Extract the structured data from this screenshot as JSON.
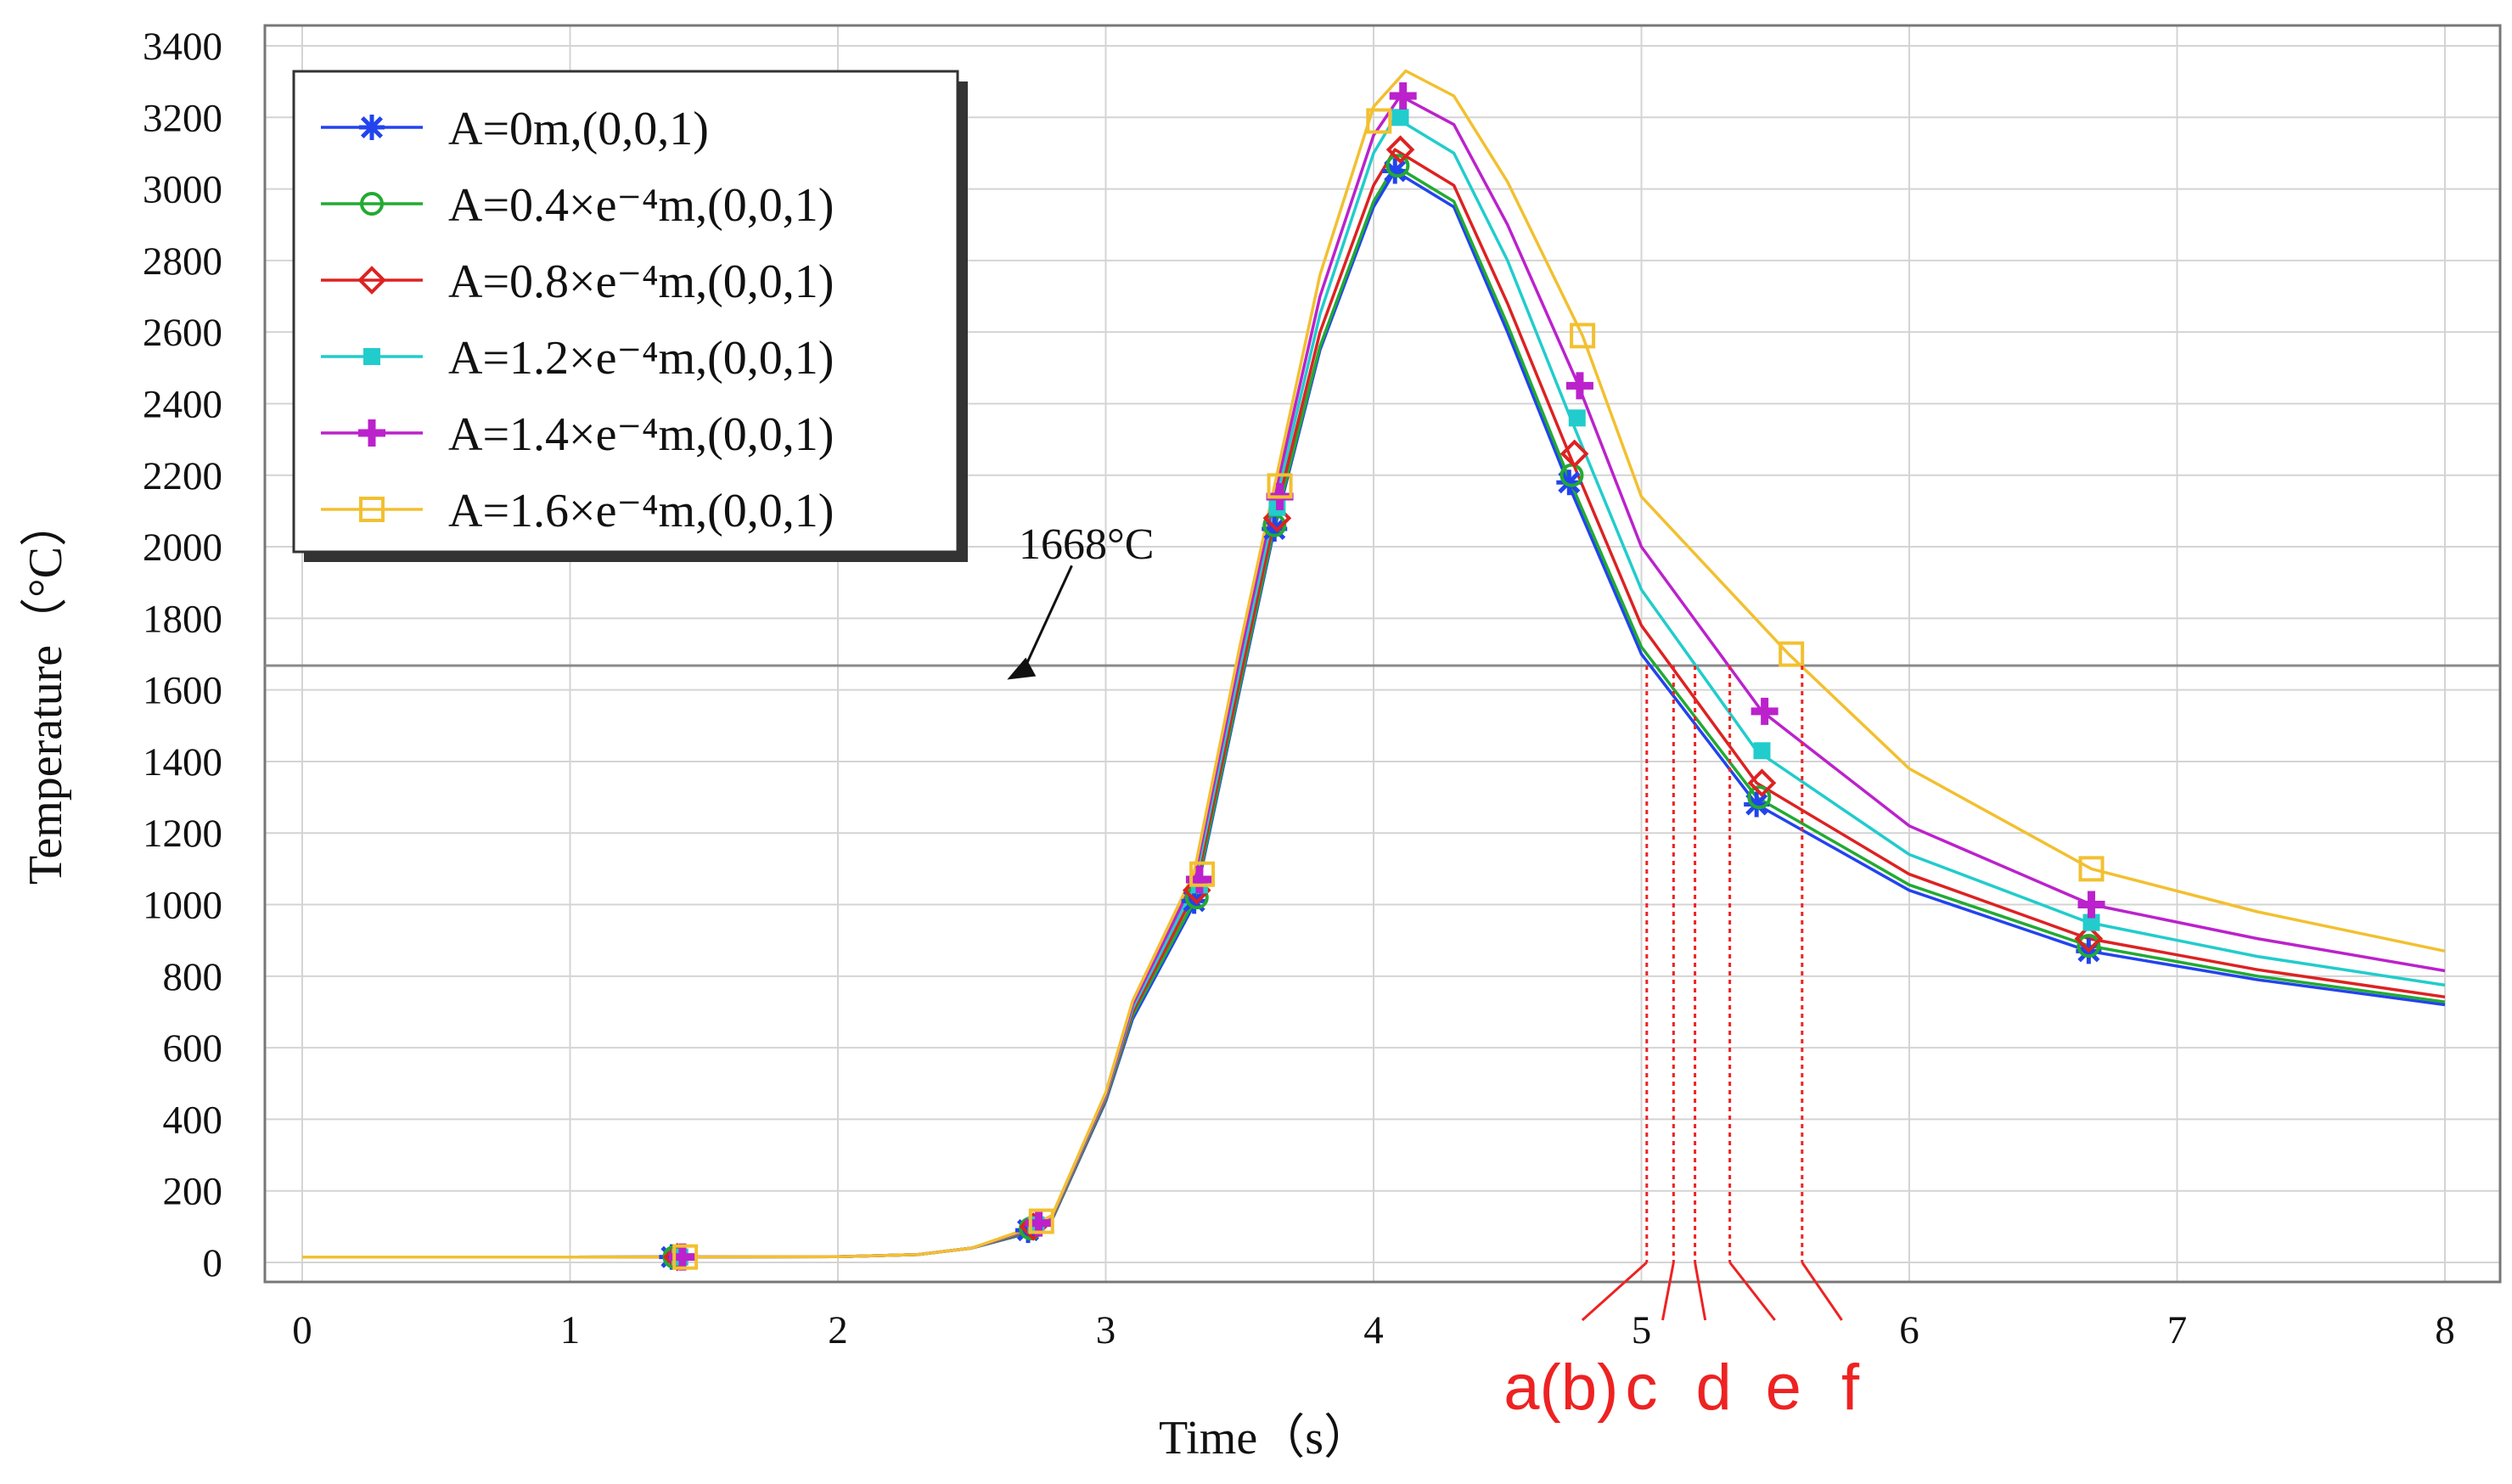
{
  "chart_data": {
    "type": "line",
    "xlabel": "Time（s）",
    "ylabel": "Temperature（°C）",
    "xlim": [
      0,
      8
    ],
    "ylim": [
      0,
      3400
    ],
    "xticks": [
      0,
      1,
      2,
      3,
      4,
      5,
      6,
      7,
      8
    ],
    "yticks": [
      0,
      200,
      400,
      600,
      800,
      1000,
      1200,
      1400,
      1600,
      1800,
      2000,
      2200,
      2400,
      2600,
      2800,
      3000,
      3200,
      3400
    ],
    "grid": true,
    "legend_position": "top-left",
    "series": [
      {
        "name": "A=0m,(0,0,1)",
        "color": "#2244ee",
        "marker": "star",
        "x": [
          0,
          1,
          2,
          2.3,
          2.5,
          2.7,
          2.8,
          3.0,
          3.1,
          3.33,
          3.5,
          3.63,
          3.8,
          4.0,
          4.08,
          4.3,
          4.5,
          4.73,
          5.0,
          5.43,
          6.0,
          6.67,
          7.3,
          8.0
        ],
        "y": [
          15,
          15,
          16,
          22,
          40,
          80,
          120,
          450,
          680,
          1000,
          1600,
          2050,
          2550,
          2950,
          3050,
          2950,
          2600,
          2170,
          1700,
          1280,
          1040,
          870,
          790,
          720
        ],
        "marker_x": [
          1.38,
          2.71,
          3.33,
          3.63,
          4.08,
          4.73,
          5.43,
          6.67
        ],
        "marker_y": [
          15,
          90,
          1010,
          2050,
          3050,
          2180,
          1280,
          870
        ]
      },
      {
        "name": "A=0.4×e⁻⁴m,(0,0,1)",
        "color": "#22aa33",
        "marker": "circle",
        "x": [
          0,
          1,
          2,
          2.3,
          2.5,
          2.7,
          2.8,
          3.0,
          3.1,
          3.33,
          3.5,
          3.63,
          3.8,
          4.0,
          4.08,
          4.3,
          4.5,
          4.73,
          5.0,
          5.43,
          6.0,
          6.67,
          7.3,
          8.0
        ],
        "y": [
          15,
          15,
          16,
          22,
          40,
          82,
          122,
          455,
          690,
          1010,
          1610,
          2060,
          2560,
          2965,
          3065,
          2965,
          2620,
          2190,
          1720,
          1300,
          1055,
          885,
          800,
          728
        ],
        "marker_x": [
          1.39,
          2.72,
          3.34,
          3.63,
          4.09,
          4.74,
          5.44,
          6.67
        ],
        "marker_y": [
          15,
          95,
          1020,
          2060,
          3065,
          2200,
          1300,
          885
        ]
      },
      {
        "name": "A=0.8×e⁻⁴m,(0,0,1)",
        "color": "#dd2222",
        "marker": "diamond",
        "x": [
          0,
          1,
          2,
          2.3,
          2.5,
          2.7,
          2.8,
          3.0,
          3.1,
          3.33,
          3.5,
          3.63,
          3.8,
          4.0,
          4.08,
          4.3,
          4.5,
          4.73,
          5.0,
          5.43,
          6.0,
          6.67,
          7.3,
          8.0
        ],
        "y": [
          15,
          15,
          16,
          22,
          40,
          85,
          125,
          460,
          700,
          1030,
          1630,
          2080,
          2600,
          3010,
          3110,
          3010,
          2680,
          2260,
          1780,
          1340,
          1085,
          905,
          818,
          742
        ],
        "marker_x": [
          1.4,
          2.73,
          3.34,
          3.64,
          4.1,
          4.75,
          5.45,
          6.67
        ],
        "marker_y": [
          15,
          100,
          1040,
          2080,
          3110,
          2260,
          1340,
          905
        ]
      },
      {
        "name": "A=1.2×e⁻⁴m,(0,0,1)",
        "color": "#22cccc",
        "marker": "square-filled",
        "x": [
          0,
          1,
          2,
          2.3,
          2.5,
          2.7,
          2.8,
          3.0,
          3.1,
          3.33,
          3.5,
          3.63,
          3.8,
          4.0,
          4.08,
          4.3,
          4.5,
          4.73,
          5.0,
          5.43,
          6.0,
          6.67,
          7.3,
          8.0
        ],
        "y": [
          15,
          15,
          16,
          22,
          40,
          88,
          128,
          465,
          710,
          1050,
          1660,
          2110,
          2650,
          3100,
          3200,
          3100,
          2800,
          2370,
          1880,
          1430,
          1140,
          950,
          855,
          775
        ],
        "marker_x": [
          1.41,
          2.74,
          3.35,
          3.64,
          4.1,
          4.76,
          5.45,
          6.68
        ],
        "marker_y": [
          15,
          105,
          1055,
          2110,
          3200,
          2360,
          1430,
          950
        ]
      },
      {
        "name": "A=1.4×e⁻⁴m,(0,0,1)",
        "color": "#bb22cc",
        "marker": "plus",
        "x": [
          0,
          1,
          2,
          2.3,
          2.5,
          2.7,
          2.8,
          3.0,
          3.1,
          3.33,
          3.5,
          3.63,
          3.8,
          4.0,
          4.1,
          4.3,
          4.5,
          4.76,
          5.0,
          5.45,
          6.0,
          6.68,
          7.3,
          8.0
        ],
        "y": [
          15,
          15,
          16,
          22,
          40,
          90,
          130,
          470,
          720,
          1070,
          1690,
          2140,
          2700,
          3150,
          3260,
          3180,
          2900,
          2460,
          2000,
          1540,
          1220,
          1000,
          905,
          815
        ],
        "marker_x": [
          1.42,
          2.75,
          3.35,
          3.65,
          4.11,
          4.77,
          5.46,
          6.68
        ],
        "marker_y": [
          15,
          110,
          1070,
          2140,
          3260,
          2450,
          1540,
          1000
        ]
      },
      {
        "name": "A=1.6×e⁻⁴m,(0,0,1)",
        "color": "#f2c030",
        "marker": "square-open",
        "x": [
          0,
          1,
          2,
          2.3,
          2.5,
          2.7,
          2.8,
          3.0,
          3.1,
          3.33,
          3.5,
          3.63,
          3.8,
          4.0,
          4.12,
          4.3,
          4.5,
          4.78,
          5.0,
          5.55,
          6.0,
          6.68,
          7.3,
          8.0
        ],
        "y": [
          15,
          15,
          16,
          22,
          40,
          92,
          132,
          475,
          730,
          1090,
          1720,
          2170,
          2760,
          3230,
          3330,
          3260,
          3020,
          2590,
          2140,
          1700,
          1380,
          1100,
          980,
          870
        ],
        "marker_x": [
          1.43,
          2.76,
          3.36,
          3.65,
          4.02,
          4.78,
          5.56,
          6.68
        ],
        "marker_y": [
          15,
          115,
          1085,
          2170,
          3190,
          2590,
          1700,
          1100
        ]
      }
    ],
    "annotations": {
      "arrow_label": "1668°C",
      "arrow_from": [
        3.0,
        1900
      ],
      "arrow_to": [
        2.6,
        1700
      ],
      "melting_line_y": 1668,
      "red_markers": [
        {
          "label": "a(b)",
          "x": 5.02,
          "label_x": 4.7
        },
        {
          "label": "c",
          "x": 5.12,
          "label_x": 5.0
        },
        {
          "label": "d",
          "x": 5.2,
          "label_x": 5.27
        },
        {
          "label": "e",
          "x": 5.33,
          "label_x": 5.53
        },
        {
          "label": "f",
          "x": 5.6,
          "label_x": 5.78
        }
      ],
      "red_color": "#ee2222"
    }
  }
}
